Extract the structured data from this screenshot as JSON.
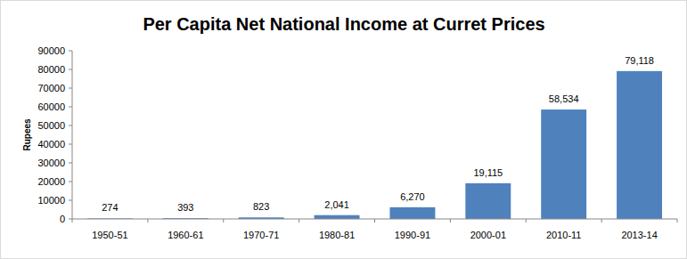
{
  "chart_data": {
    "type": "bar",
    "title": "Per Capita Net National Income at Curret Prices",
    "y_label": "Rupees",
    "categories": [
      "1950-51",
      "1960-61",
      "1970-71",
      "1980-81",
      "1990-91",
      "2000-01",
      "2010-11",
      "2013-14"
    ],
    "values": [
      274,
      393,
      823,
      2041,
      6270,
      19115,
      58534,
      79118
    ],
    "value_labels": [
      "274",
      "393",
      "823",
      "2,041",
      "6,270",
      "19,115",
      "58,534",
      "79,118"
    ],
    "color": "#4f81bd",
    "ylim": [
      0,
      90000
    ],
    "yticks": [
      0,
      10000,
      20000,
      30000,
      40000,
      50000,
      60000,
      70000,
      80000,
      90000
    ],
    "grid": false,
    "data_labels": true
  }
}
